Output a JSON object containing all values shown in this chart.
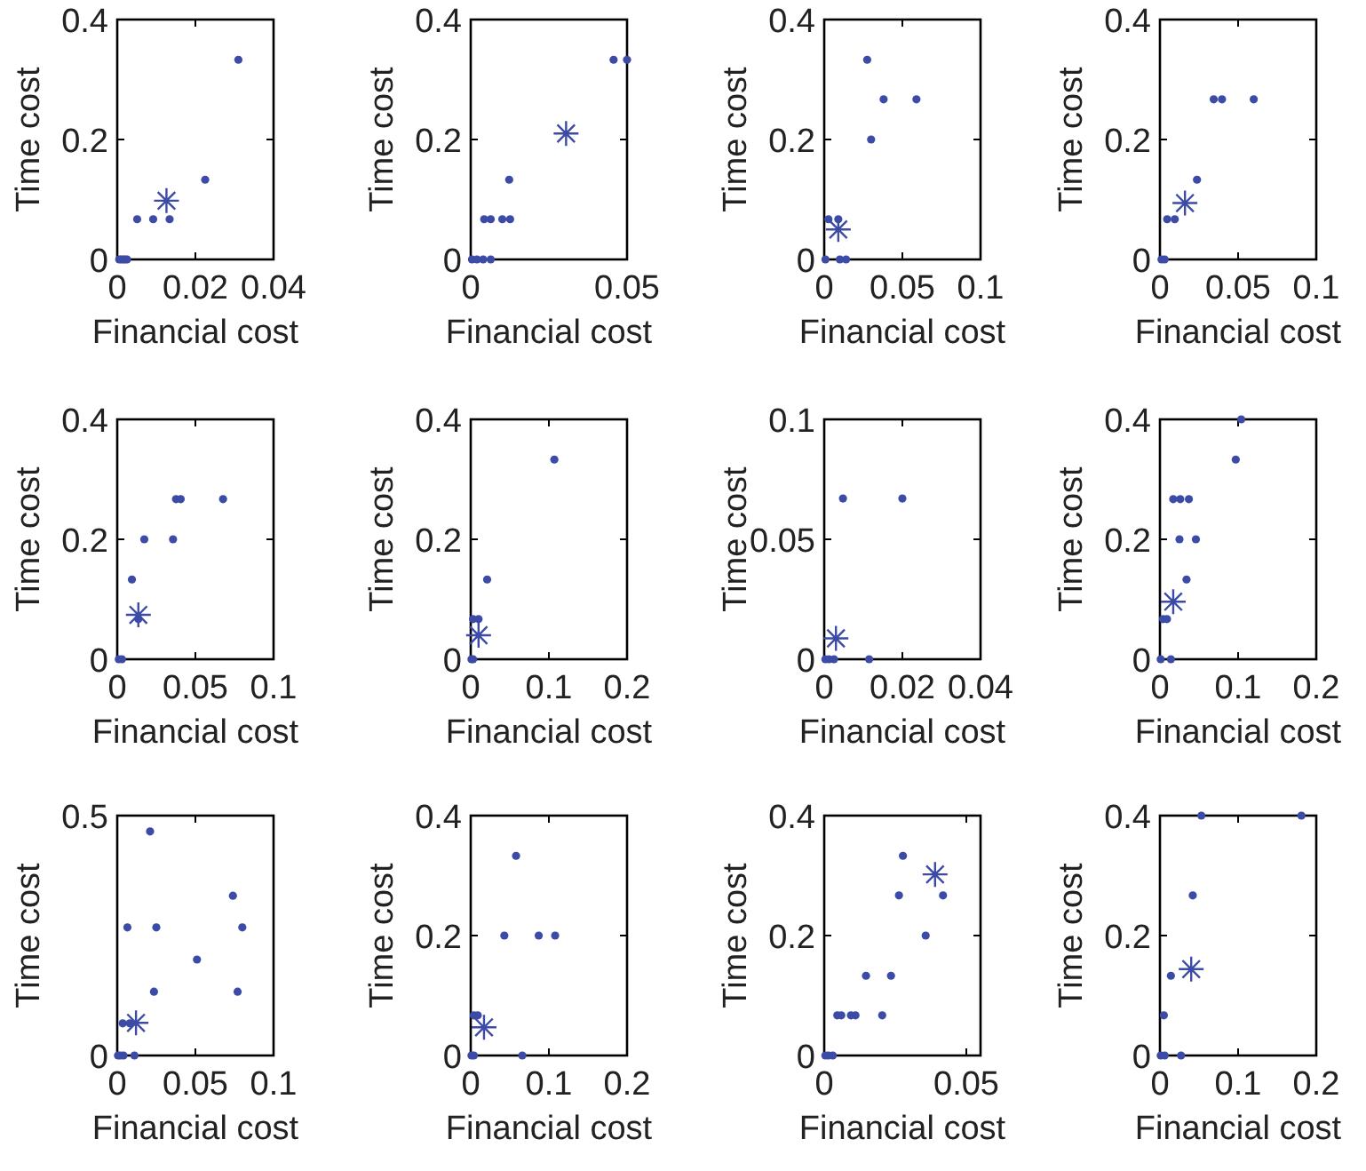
{
  "chart_data": [
    {
      "type": "scatter",
      "xlabel": "Financial cost",
      "ylabel": "Time cost",
      "xlim": [
        0,
        0.04
      ],
      "ylim": [
        0,
        0.4
      ],
      "xticks": [
        0,
        0.02,
        0.04
      ],
      "yticks": [
        0,
        0.2,
        0.4
      ],
      "series": [
        {
          "color": "#3b4ba6",
          "marker": "circle",
          "x": [
            0.0005,
            0.001,
            0.0015,
            0.002,
            0.0025,
            0.0051,
            0.0092,
            0.0134,
            0.0225,
            0.031
          ],
          "values": [
            0,
            0,
            0,
            0,
            0,
            0.067,
            0.067,
            0.067,
            0.133,
            0.333
          ]
        },
        {
          "color": "#3b4ba6",
          "marker": "cross",
          "x": [
            0.0126
          ],
          "values": [
            0.098
          ]
        }
      ]
    },
    {
      "type": "scatter",
      "xlabel": "Financial cost",
      "ylabel": "Time cost",
      "xlim": [
        0,
        0.05
      ],
      "ylim": [
        0,
        0.4
      ],
      "xticks": [
        0,
        0.05
      ],
      "yticks": [
        0,
        0.2,
        0.4
      ],
      "series": [
        {
          "color": "#3b4ba6",
          "marker": "circle",
          "x": [
            0.0004,
            0.002,
            0.004,
            0.0064,
            0.0043,
            0.0064,
            0.0101,
            0.0126,
            0.0123,
            0.0457,
            0.05
          ],
          "values": [
            0,
            0,
            0,
            0,
            0.067,
            0.067,
            0.067,
            0.067,
            0.133,
            0.333,
            0.333
          ]
        },
        {
          "color": "#3b4ba6",
          "marker": "cross",
          "x": [
            0.0305
          ],
          "values": [
            0.21
          ]
        }
      ]
    },
    {
      "type": "scatter",
      "xlabel": "Financial cost",
      "ylabel": "Time cost",
      "xlim": [
        0,
        0.1
      ],
      "ylim": [
        0,
        0.4
      ],
      "xticks": [
        0,
        0.05,
        0.1
      ],
      "yticks": [
        0,
        0.2,
        0.4
      ],
      "series": [
        {
          "color": "#3b4ba6",
          "marker": "circle",
          "x": [
            0.0008,
            0.01,
            0.014,
            0.0027,
            0.009,
            0.0275,
            0.038,
            0.059,
            0.03
          ],
          "values": [
            0,
            0,
            0,
            0.067,
            0.067,
            0.333,
            0.267,
            0.267,
            0.2
          ]
        },
        {
          "color": "#3b4ba6",
          "marker": "cross",
          "x": [
            0.009
          ],
          "values": [
            0.05
          ]
        }
      ]
    },
    {
      "type": "scatter",
      "xlabel": "Financial cost",
      "ylabel": "Time cost",
      "xlim": [
        0,
        0.1
      ],
      "ylim": [
        0,
        0.4
      ],
      "xticks": [
        0,
        0.05,
        0.1
      ],
      "yticks": [
        0,
        0.2,
        0.4
      ],
      "series": [
        {
          "color": "#3b4ba6",
          "marker": "circle",
          "x": [
            0.001,
            0.003,
            0.0046,
            0.0095,
            0.0237,
            0.0344,
            0.0397,
            0.06
          ],
          "values": [
            0,
            0,
            0.067,
            0.067,
            0.133,
            0.267,
            0.267,
            0.267
          ]
        },
        {
          "color": "#3b4ba6",
          "marker": "cross",
          "x": [
            0.016
          ],
          "values": [
            0.094
          ]
        }
      ]
    },
    {
      "type": "scatter",
      "xlabel": "Financial cost",
      "ylabel": "Time cost",
      "xlim": [
        0,
        0.1
      ],
      "ylim": [
        0,
        0.4
      ],
      "xticks": [
        0,
        0.05,
        0.1
      ],
      "yticks": [
        0,
        0.2,
        0.4
      ],
      "series": [
        {
          "color": "#3b4ba6",
          "marker": "circle",
          "x": [
            0.001,
            0.003,
            0.0094,
            0.0173,
            0.0357,
            0.0376,
            0.0406,
            0.0677,
            0.0135
          ],
          "values": [
            0,
            0,
            0.133,
            0.2,
            0.2,
            0.267,
            0.267,
            0.267,
            0.067
          ]
        },
        {
          "color": "#3b4ba6",
          "marker": "cross",
          "x": [
            0.0135
          ],
          "values": [
            0.074
          ]
        }
      ]
    },
    {
      "type": "scatter",
      "xlabel": "Financial cost",
      "ylabel": "Time cost",
      "xlim": [
        0,
        0.2
      ],
      "ylim": [
        0,
        0.4
      ],
      "xticks": [
        0,
        0.1,
        0.2
      ],
      "yticks": [
        0,
        0.2,
        0.4
      ],
      "series": [
        {
          "color": "#3b4ba6",
          "marker": "circle",
          "x": [
            0.001,
            0.003,
            0.003,
            0.01,
            0.021,
            0.107
          ],
          "values": [
            0,
            0,
            0.067,
            0.067,
            0.133,
            0.333
          ]
        },
        {
          "color": "#3b4ba6",
          "marker": "cross",
          "x": [
            0.01
          ],
          "values": [
            0.04
          ]
        }
      ]
    },
    {
      "type": "scatter",
      "xlabel": "Financial cost",
      "ylabel": "Time cost",
      "xlim": [
        0,
        0.04
      ],
      "ylim": [
        0,
        0.1
      ],
      "xticks": [
        0,
        0.02,
        0.04
      ],
      "yticks": [
        0,
        0.05,
        0.1
      ],
      "series": [
        {
          "color": "#3b4ba6",
          "marker": "circle",
          "x": [
            0.0003,
            0.0012,
            0.0025,
            0.0115,
            0.0048,
            0.02
          ],
          "values": [
            0,
            0,
            0,
            0,
            0.067,
            0.067
          ]
        },
        {
          "color": "#3b4ba6",
          "marker": "cross",
          "x": [
            0.003
          ],
          "values": [
            0.0087
          ]
        }
      ]
    },
    {
      "type": "scatter",
      "xlabel": "Financial cost",
      "ylabel": "Time cost",
      "xlim": [
        0,
        0.2
      ],
      "ylim": [
        0,
        0.4
      ],
      "xticks": [
        0,
        0.1,
        0.2
      ],
      "yticks": [
        0,
        0.2,
        0.4
      ],
      "series": [
        {
          "color": "#3b4ba6",
          "marker": "circle",
          "x": [
            0.001,
            0.014,
            0.004,
            0.009,
            0.034,
            0.025,
            0.046,
            0.017,
            0.026,
            0.037,
            0.097,
            0.104
          ],
          "values": [
            0,
            0,
            0.067,
            0.067,
            0.133,
            0.2,
            0.2,
            0.267,
            0.267,
            0.267,
            0.333,
            0.4
          ]
        },
        {
          "color": "#3b4ba6",
          "marker": "cross",
          "x": [
            0.017
          ],
          "values": [
            0.096
          ]
        }
      ]
    },
    {
      "type": "scatter",
      "xlabel": "Financial cost",
      "ylabel": "Time cost",
      "xlim": [
        0,
        0.1
      ],
      "ylim": [
        0,
        0.5
      ],
      "xticks": [
        0,
        0.05,
        0.1
      ],
      "yticks": [
        0,
        0.5
      ],
      "series": [
        {
          "color": "#3b4ba6",
          "marker": "circle",
          "x": [
            0.0005,
            0.002,
            0.004,
            0.011,
            0.0035,
            0.008,
            0.021,
            0.0065,
            0.025,
            0.051,
            0.0235,
            0.074,
            0.08,
            0.077
          ],
          "values": [
            0,
            0,
            0,
            0,
            0.067,
            0.067,
            0.467,
            0.267,
            0.267,
            0.2,
            0.133,
            0.333,
            0.267,
            0.133
          ]
        },
        {
          "color": "#3b4ba6",
          "marker": "cross",
          "x": [
            0.012
          ],
          "values": [
            0.068
          ]
        }
      ]
    },
    {
      "type": "scatter",
      "xlabel": "Financial cost",
      "ylabel": "Time cost",
      "xlim": [
        0,
        0.2
      ],
      "ylim": [
        0,
        0.4
      ],
      "xticks": [
        0,
        0.1,
        0.2
      ],
      "yticks": [
        0,
        0.2,
        0.4
      ],
      "series": [
        {
          "color": "#3b4ba6",
          "marker": "circle",
          "x": [
            0.001,
            0.004,
            0.004,
            0.009,
            0.058,
            0.043,
            0.087,
            0.108,
            0.066
          ],
          "values": [
            0,
            0,
            0.067,
            0.067,
            0.333,
            0.2,
            0.2,
            0.2,
            0
          ]
        },
        {
          "color": "#3b4ba6",
          "marker": "cross",
          "x": [
            0.017
          ],
          "values": [
            0.047
          ]
        }
      ]
    },
    {
      "type": "scatter",
      "xlabel": "Financial cost",
      "ylabel": "Time cost",
      "xlim": [
        0,
        0.055
      ],
      "ylim": [
        0,
        0.4
      ],
      "xticks": [
        0,
        0.05
      ],
      "yticks": [
        0,
        0.2,
        0.4
      ],
      "series": [
        {
          "color": "#3b4ba6",
          "marker": "circle",
          "x": [
            0.0004,
            0.0015,
            0.003,
            0.0046,
            0.006,
            0.0094,
            0.011,
            0.0204,
            0.0147,
            0.0235,
            0.0263,
            0.0277,
            0.0357,
            0.0418
          ],
          "values": [
            0,
            0,
            0,
            0.067,
            0.067,
            0.067,
            0.067,
            0.067,
            0.133,
            0.133,
            0.267,
            0.333,
            0.2,
            0.267
          ]
        },
        {
          "color": "#3b4ba6",
          "marker": "cross",
          "x": [
            0.039
          ],
          "values": [
            0.302
          ]
        }
      ]
    },
    {
      "type": "scatter",
      "xlabel": "Financial cost",
      "ylabel": "Time cost",
      "xlim": [
        0,
        0.2
      ],
      "ylim": [
        0,
        0.4
      ],
      "xticks": [
        0,
        0.1,
        0.2
      ],
      "yticks": [
        0,
        0.2,
        0.4
      ],
      "series": [
        {
          "color": "#3b4ba6",
          "marker": "circle",
          "x": [
            0.001,
            0.006,
            0.027,
            0.005,
            0.014,
            0.042,
            0.053,
            0.181
          ],
          "values": [
            0,
            0,
            0,
            0.067,
            0.133,
            0.267,
            0.4,
            0.4
          ]
        },
        {
          "color": "#3b4ba6",
          "marker": "cross",
          "x": [
            0.04
          ],
          "values": [
            0.144
          ]
        }
      ]
    }
  ]
}
